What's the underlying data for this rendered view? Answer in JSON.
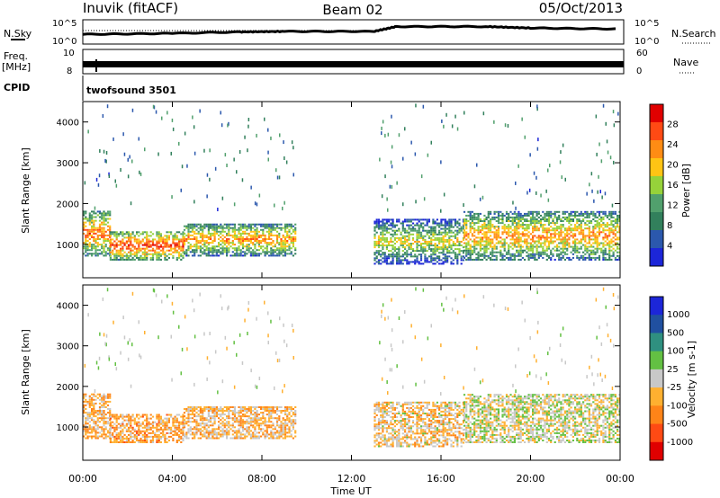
{
  "header": {
    "station": "Inuvik (fitACF)",
    "beam": "Beam 02",
    "date": "05/Oct/2013"
  },
  "noise_panel": {
    "left_label": "N.Sky",
    "right_label": "N.Search",
    "ticks": [
      "10^5",
      "10^0"
    ]
  },
  "freq_panel": {
    "left_label_1": "Freq.",
    "left_label_2": "[MHz]",
    "left_ticks": [
      "10",
      "8"
    ],
    "right_label": "Nave",
    "right_ticks": [
      "60",
      "0"
    ]
  },
  "cpid_panel": {
    "label": "CPID",
    "program": "twofsound 3501"
  },
  "power_panel": {
    "ylabel": "Slant Range [km]",
    "yticks": [
      "4000",
      "3000",
      "2000",
      "1000"
    ],
    "colorbar_label": "Power [dB]",
    "colorbar_ticks": [
      "28",
      "24",
      "20",
      "16",
      "12",
      "8",
      "4"
    ]
  },
  "velocity_panel": {
    "ylabel": "Slant Range [km]",
    "yticks": [
      "4000",
      "3000",
      "2000",
      "1000"
    ],
    "colorbar_label": "Velocity [m s-1]",
    "colorbar_ticks": [
      "1000",
      "500",
      "100",
      "25",
      "-25",
      "-100",
      "-500",
      "-1000"
    ]
  },
  "xaxis": {
    "ticks": [
      "00:00",
      "04:00",
      "08:00",
      "12:00",
      "16:00",
      "20:00",
      "00:00"
    ],
    "label": "Time UT"
  },
  "chart_data": {
    "type": "heatmap",
    "x_unit": "hours UT",
    "xlim": [
      0,
      24
    ],
    "ylim_km": [
      180,
      4500
    ],
    "power_scale_db": [
      0,
      30
    ],
    "velocity_scale_ms": [
      -1000,
      1000
    ],
    "power_colors": [
      "#1c26d8",
      "#2b58ad",
      "#32805c",
      "#51a06d",
      "#96d23a",
      "#ffc414",
      "#ff8c14",
      "#ff4a14",
      "#e00000"
    ],
    "velocity_colors": [
      "#1c26d8",
      "#2050a0",
      "#2f9080",
      "#63c043",
      "#c8c8c8",
      "#ffb030",
      "#ff8418",
      "#ff4a14",
      "#e00000"
    ],
    "noise_series": [
      {
        "t": 0,
        "v": 2.0
      },
      {
        "t": 4,
        "v": 2.2
      },
      {
        "t": 7,
        "v": 2.5
      },
      {
        "t": 9,
        "v": 2.6
      },
      {
        "t": 13,
        "v": 2.6
      },
      {
        "t": 14,
        "v": 3.6
      },
      {
        "t": 18,
        "v": 3.6
      },
      {
        "t": 20,
        "v": 3.3
      },
      {
        "t": 24,
        "v": 3.1
      }
    ],
    "backscatter_regions": [
      {
        "t0": 0.0,
        "t1": 1.2,
        "r0": 700,
        "r1": 1800,
        "power_db": 24,
        "velocity": -250
      },
      {
        "t0": 1.2,
        "t1": 4.5,
        "r0": 600,
        "r1": 1300,
        "power_db": 26,
        "velocity": -300
      },
      {
        "t0": 4.5,
        "t1": 9.5,
        "r0": 700,
        "r1": 1500,
        "power_db": 22,
        "velocity": -200
      },
      {
        "t0": 13.0,
        "t1": 17.0,
        "r0": 500,
        "r1": 1600,
        "power_db": 18,
        "velocity": -150
      },
      {
        "t0": 17.0,
        "t1": 24.0,
        "r0": 600,
        "r1": 1800,
        "power_db": 22,
        "velocity": 0
      }
    ]
  }
}
